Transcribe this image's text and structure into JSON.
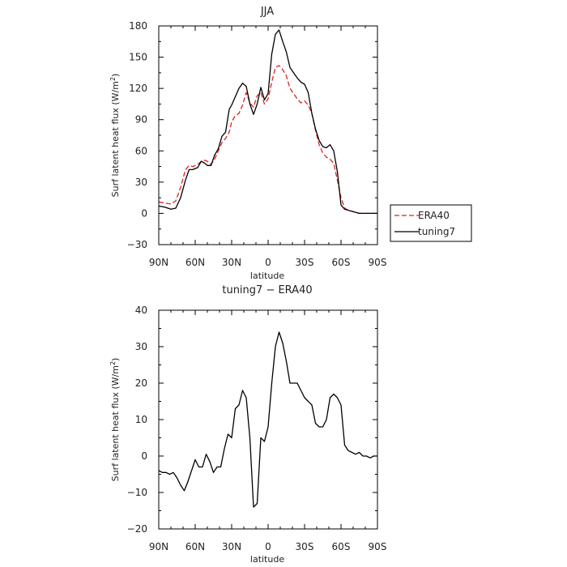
{
  "chart_data": [
    {
      "type": "line",
      "title": "JJA",
      "xlabel": "latitude",
      "ylabel": "Surf latent heat flux (W/m²)",
      "ylabel_main": "Surf latent heat flux (W/m",
      "ylabel_sup": "2",
      "ylabel_close": ")",
      "xlim": [
        90,
        -90
      ],
      "ylim": [
        -30,
        180
      ],
      "xticks": [
        90,
        60,
        30,
        0,
        -30,
        -60,
        -90
      ],
      "xtick_labels": [
        "90N",
        "60N",
        "30N",
        "0",
        "30S",
        "60S",
        "90S"
      ],
      "yticks": [
        -30,
        0,
        30,
        60,
        90,
        120,
        150,
        180
      ],
      "ytick_labels": [
        "−30",
        "0",
        "30",
        "60",
        "90",
        "120",
        "150",
        "180"
      ],
      "grid": false,
      "legend": "right",
      "series": [
        {
          "name": "ERA40",
          "color": "#dd2222",
          "dash": "dashed",
          "x": [
            90,
            85,
            80,
            76,
            72,
            68,
            65,
            62,
            58,
            55,
            52,
            50,
            47,
            44,
            41,
            38,
            35,
            32,
            30,
            27,
            24,
            21,
            18,
            15,
            12,
            9,
            6,
            3,
            0,
            -3,
            -6,
            -9,
            -12,
            -15,
            -18,
            -21,
            -24,
            -27,
            -30,
            -33,
            -36,
            -39,
            -42,
            -45,
            -48,
            -51,
            -54,
            -57,
            -60,
            -63,
            -66,
            -69,
            -72,
            -75,
            -78,
            -81,
            -84,
            -87,
            -90
          ],
          "values": [
            11,
            10,
            9,
            12,
            25,
            42,
            46,
            45,
            47,
            50,
            51,
            50,
            47,
            52,
            60,
            68,
            72,
            78,
            88,
            94,
            96,
            104,
            116,
            106,
            102,
            113,
            116,
            105,
            110,
            126,
            140,
            142,
            138,
            132,
            120,
            115,
            110,
            106,
            108,
            104,
            96,
            80,
            66,
            58,
            54,
            52,
            48,
            32,
            15,
            5,
            3,
            2,
            1,
            0,
            0,
            0,
            0,
            0,
            0
          ]
        },
        {
          "name": "tuning7",
          "color": "#000000",
          "dash": "solid",
          "x": [
            90,
            85,
            80,
            76,
            72,
            68,
            65,
            62,
            58,
            55,
            52,
            50,
            47,
            44,
            41,
            38,
            35,
            32,
            30,
            27,
            24,
            21,
            18,
            15,
            12,
            9,
            6,
            3,
            0,
            -3,
            -6,
            -9,
            -12,
            -15,
            -18,
            -21,
            -24,
            -27,
            -30,
            -33,
            -36,
            -39,
            -42,
            -45,
            -48,
            -51,
            -54,
            -57,
            -60,
            -63,
            -66,
            -69,
            -72,
            -75,
            -78,
            -81,
            -84,
            -87,
            -90
          ],
          "values": [
            7,
            6,
            4,
            5,
            15,
            32,
            42,
            42,
            44,
            50,
            48,
            46,
            46,
            56,
            62,
            74,
            78,
            100,
            104,
            112,
            120,
            125,
            122,
            105,
            95,
            105,
            121,
            109,
            115,
            153,
            172,
            176,
            165,
            155,
            140,
            135,
            130,
            126,
            124,
            116,
            96,
            81,
            70,
            64,
            63,
            66,
            60,
            40,
            8,
            4,
            3,
            2,
            1,
            0,
            0,
            0,
            0,
            0,
            0
          ]
        }
      ]
    },
    {
      "type": "line",
      "title": "tuning7 − ERA40",
      "xlabel": "latitude",
      "ylabel": "Surf latent heat flux (W/m²)",
      "ylabel_main": "Surf latent heat flux (W/m",
      "ylabel_sup": "2",
      "ylabel_close": ")",
      "xlim": [
        90,
        -90
      ],
      "ylim": [
        -20,
        40
      ],
      "xticks": [
        90,
        60,
        30,
        0,
        -30,
        -60,
        -90
      ],
      "xtick_labels": [
        "90N",
        "60N",
        "30N",
        "0",
        "30S",
        "60S",
        "90S"
      ],
      "yticks": [
        -20,
        -10,
        0,
        10,
        20,
        30,
        40
      ],
      "ytick_labels": [
        "−20",
        "−10",
        "0",
        "10",
        "20",
        "30",
        "40"
      ],
      "grid": false,
      "series": [
        {
          "color": "#000000",
          "dash": "solid",
          "x": [
            90,
            87,
            84,
            81,
            78,
            75,
            72,
            69,
            66,
            63,
            60,
            57,
            54,
            51,
            48,
            45,
            42,
            39,
            36,
            33,
            30,
            27,
            24,
            21,
            18,
            15,
            12,
            9,
            6,
            3,
            0,
            -3,
            -6,
            -9,
            -12,
            -15,
            -18,
            -21,
            -24,
            -27,
            -30,
            -33,
            -36,
            -39,
            -42,
            -45,
            -48,
            -51,
            -54,
            -57,
            -60,
            -63,
            -66,
            -69,
            -72,
            -75,
            -78,
            -81,
            -84,
            -87,
            -90
          ],
          "values": [
            -4,
            -4.5,
            -4.5,
            -5,
            -4.5,
            -6,
            -8,
            -9.5,
            -7,
            -4,
            -1,
            -3,
            -3,
            0.5,
            -1.5,
            -4.5,
            -3,
            -3,
            2,
            6,
            5,
            13,
            14,
            18,
            16,
            5,
            -14,
            -13,
            5,
            4,
            8,
            20,
            30,
            34,
            31,
            26,
            20,
            20,
            20,
            18,
            16,
            15,
            14,
            9,
            8,
            8,
            10,
            16,
            17,
            16,
            14,
            3,
            1.5,
            1,
            0.5,
            1,
            0,
            0,
            -0.5,
            0,
            0
          ]
        }
      ]
    }
  ]
}
